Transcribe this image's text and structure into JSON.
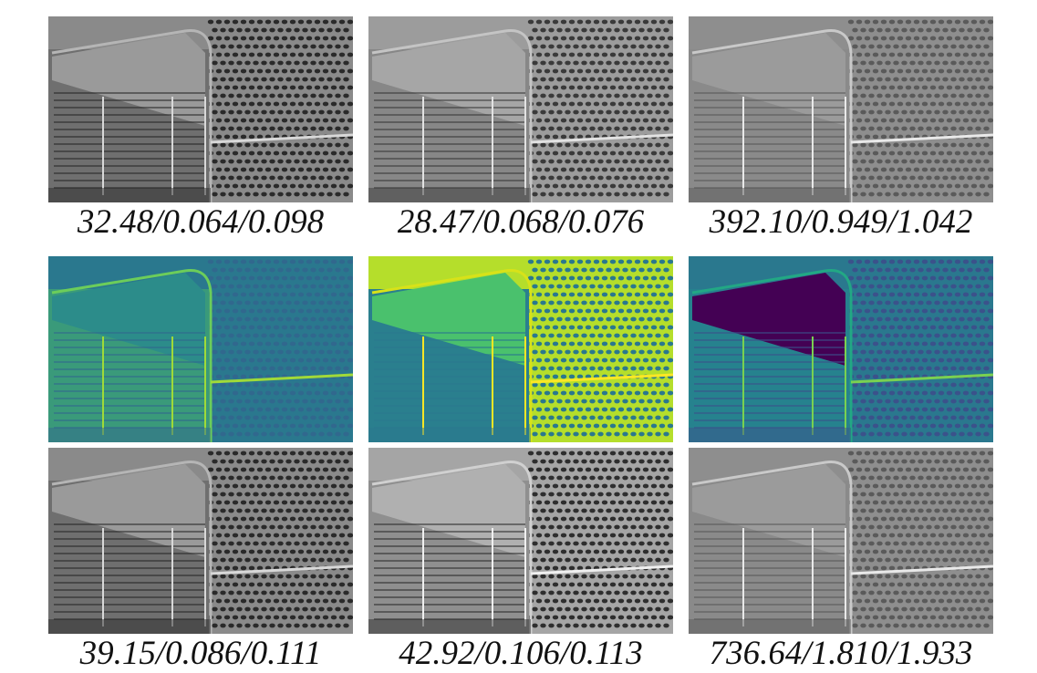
{
  "figure": {
    "rows": [
      {
        "kind": "grayscale",
        "captions": [
          "32.48/0.064/0.098",
          "28.47/0.068/0.076",
          "392.10/0.949/1.042"
        ]
      },
      {
        "kind": "viridis-heatmap",
        "captions": []
      },
      {
        "kind": "grayscale",
        "captions": [
          "39.15/0.086/0.111",
          "42.92/0.106/0.113",
          "736.64/1.810/1.933"
        ]
      }
    ]
  },
  "colors": {
    "background": "#ffffff",
    "caption_text": "#111111",
    "viridis_dark": "#440154",
    "viridis_mid": "#21918c",
    "viridis_bright": "#fde725"
  }
}
